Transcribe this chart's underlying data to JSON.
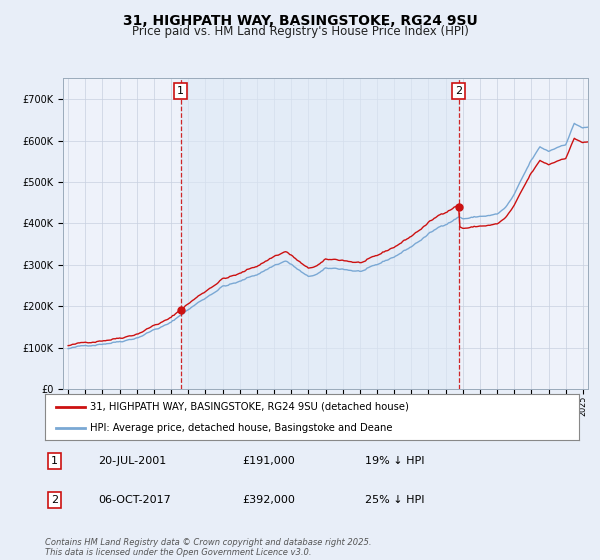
{
  "title": "31, HIGHPATH WAY, BASINGSTOKE, RG24 9SU",
  "subtitle": "Price paid vs. HM Land Registry's House Price Index (HPI)",
  "ylim": [
    0,
    750000
  ],
  "yticks": [
    0,
    100000,
    200000,
    300000,
    400000,
    500000,
    600000,
    700000
  ],
  "ytick_labels": [
    "£0",
    "£100K",
    "£200K",
    "£300K",
    "£400K",
    "£500K",
    "£600K",
    "£700K"
  ],
  "hpi_color": "#7aa8d4",
  "price_color": "#cc1111",
  "vline_color": "#cc1111",
  "marker1_year": 2001.55,
  "marker1_price": 191000,
  "marker2_year": 2017.76,
  "marker2_price": 392000,
  "legend_labels": [
    "31, HIGHPATH WAY, BASINGSTOKE, RG24 9SU (detached house)",
    "HPI: Average price, detached house, Basingstoke and Deane"
  ],
  "table_data": [
    [
      "1",
      "20-JUL-2001",
      "£191,000",
      "19% ↓ HPI"
    ],
    [
      "2",
      "06-OCT-2017",
      "£392,000",
      "25% ↓ HPI"
    ]
  ],
  "footer": "Contains HM Land Registry data © Crown copyright and database right 2025.\nThis data is licensed under the Open Government Licence v3.0.",
  "background_color": "#e8eef8",
  "plot_background": "#eef2fa",
  "shade_color": "#dce8f5",
  "grid_color": "#c8d0e0",
  "title_fontsize": 10,
  "subtitle_fontsize": 8.5,
  "tick_fontsize": 7
}
